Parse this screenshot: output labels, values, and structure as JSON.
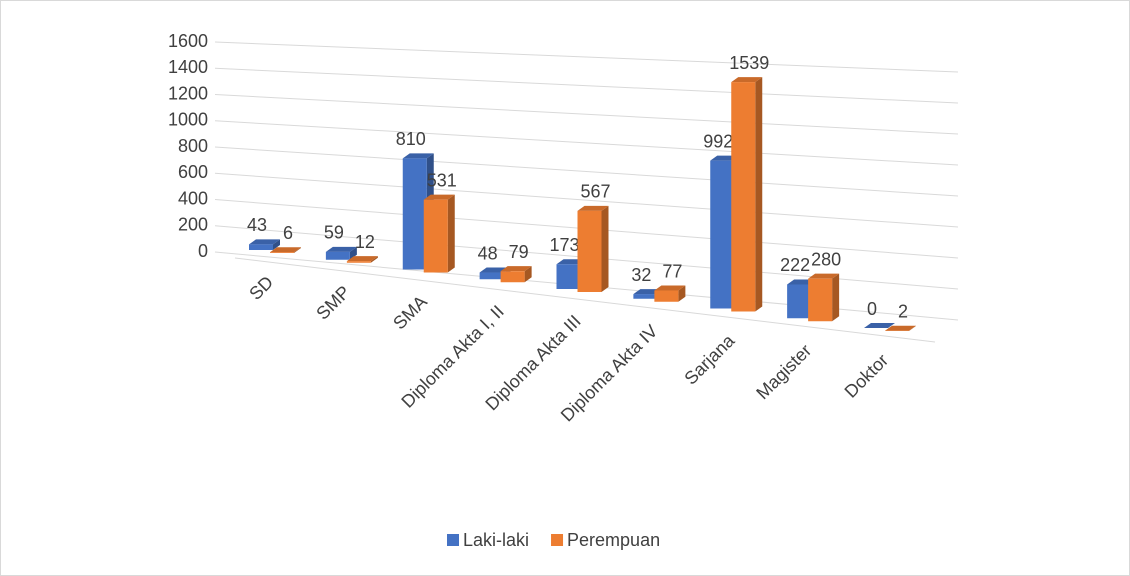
{
  "chart_data": {
    "type": "bar3d",
    "categories": [
      "SD",
      "SMP",
      "SMA",
      "Diploma Akta I, II",
      "Diploma Akta III",
      "Diploma Akta IV",
      "Sarjana",
      "Magister",
      "Doktor"
    ],
    "series": [
      {
        "name": "Laki-laki",
        "color": "#4472c4",
        "values": [
          43,
          59,
          810,
          48,
          173,
          32,
          992,
          222,
          0
        ]
      },
      {
        "name": "Perempuan",
        "color": "#ed7d31",
        "values": [
          6,
          12,
          531,
          79,
          567,
          77,
          1539,
          280,
          2
        ]
      }
    ],
    "ylim": [
      0,
      1600
    ],
    "yticks": [
      0,
      200,
      400,
      600,
      800,
      1000,
      1200,
      1400,
      1600
    ],
    "grid": true,
    "legend": "bottom"
  }
}
